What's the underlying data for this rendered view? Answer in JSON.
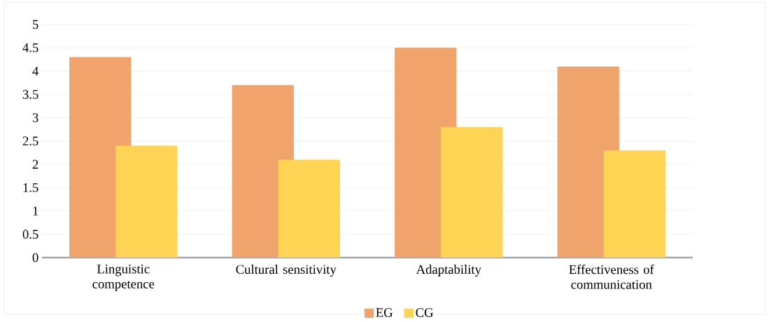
{
  "chart_data": {
    "type": "bar",
    "categories": [
      "Linguistic competence",
      "Cultural sensitivity",
      "Adaptability",
      "Effectiveness of communication"
    ],
    "series": [
      {
        "name": "EG",
        "color": "#f0a46c",
        "values": [
          4.3,
          3.7,
          4.5,
          4.1
        ]
      },
      {
        "name": "CG",
        "color": "#ffd454",
        "values": [
          2.4,
          2.1,
          2.8,
          2.3
        ]
      }
    ],
    "ylim": [
      0,
      5
    ],
    "yticks": [
      0,
      0.5,
      1,
      1.5,
      2,
      2.5,
      3,
      3.5,
      4,
      4.5,
      5
    ],
    "grid": "y",
    "legend": "bottom"
  }
}
